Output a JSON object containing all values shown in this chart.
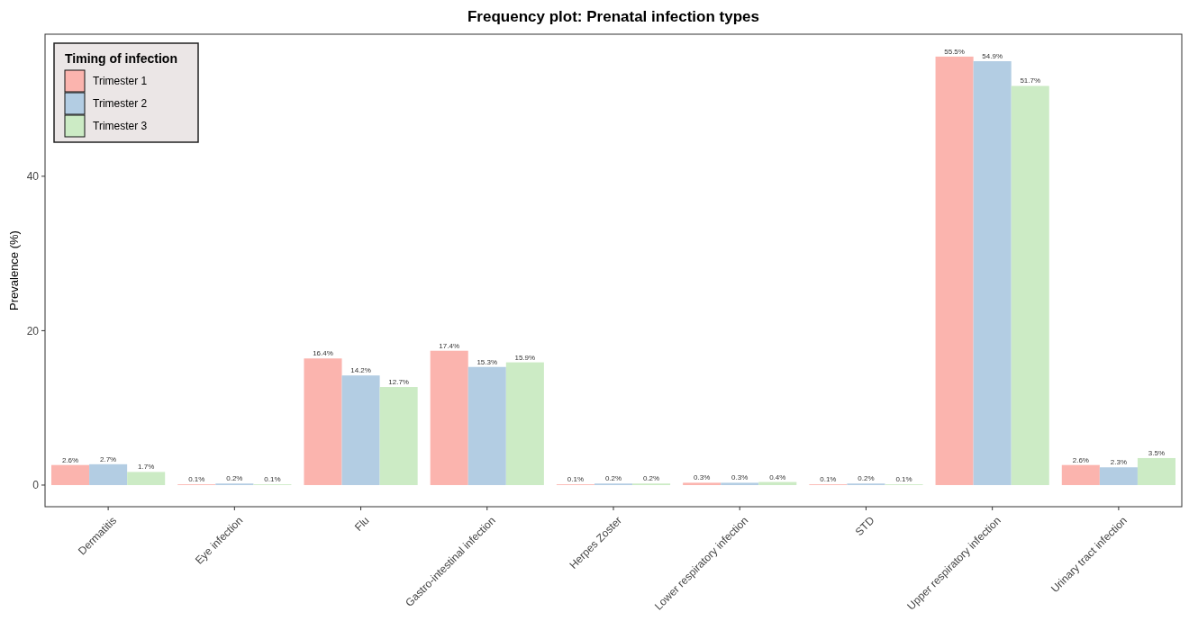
{
  "chart_data": {
    "type": "bar",
    "title": "Frequency plot: Prenatal infection types",
    "xlabel": null,
    "ylabel": "Prevalence (%)",
    "legend_title": "Timing of infection",
    "legend": "top left",
    "grid": false,
    "categories": [
      "Dermatitis",
      "Eye infection",
      "Flu",
      "Gastro-intestinal infection",
      "Herpes Zoster",
      "Lower respiratory infection",
      "STD",
      "Upper respiratory infection",
      "Urinary tract infection"
    ],
    "ylim": [
      -2.8,
      58.4
    ],
    "yticks": [
      0,
      20,
      40
    ],
    "series": [
      {
        "name": "Trimester 1",
        "color": "#fbb4ae",
        "values": [
          2.6,
          0.1,
          16.4,
          17.4,
          0.1,
          0.3,
          0.1,
          55.5,
          2.6
        ],
        "value_labels": [
          "2.6%",
          "0.1%",
          "16.4%",
          "17.4%",
          "0.1%",
          "0.3%",
          "0.1%",
          "55.5%",
          "2.6%"
        ]
      },
      {
        "name": "Trimester 2",
        "color": "#b3cde3",
        "values": [
          2.7,
          0.2,
          14.2,
          15.3,
          0.2,
          0.3,
          0.2,
          54.9,
          2.3
        ],
        "value_labels": [
          "2.7%",
          "0.2%",
          "14.2%",
          "15.3%",
          "0.2%",
          "0.3%",
          "0.2%",
          "54.9%",
          "2.3%"
        ]
      },
      {
        "name": "Trimester 3",
        "color": "#ccebc5",
        "values": [
          1.7,
          0.1,
          12.7,
          15.9,
          0.2,
          0.4,
          0.1,
          51.7,
          3.5
        ],
        "value_labels": [
          "1.7%",
          "0.1%",
          "12.7%",
          "15.9%",
          "0.2%",
          "0.4%",
          "0.1%",
          "51.7%",
          "3.5%"
        ]
      }
    ]
  }
}
